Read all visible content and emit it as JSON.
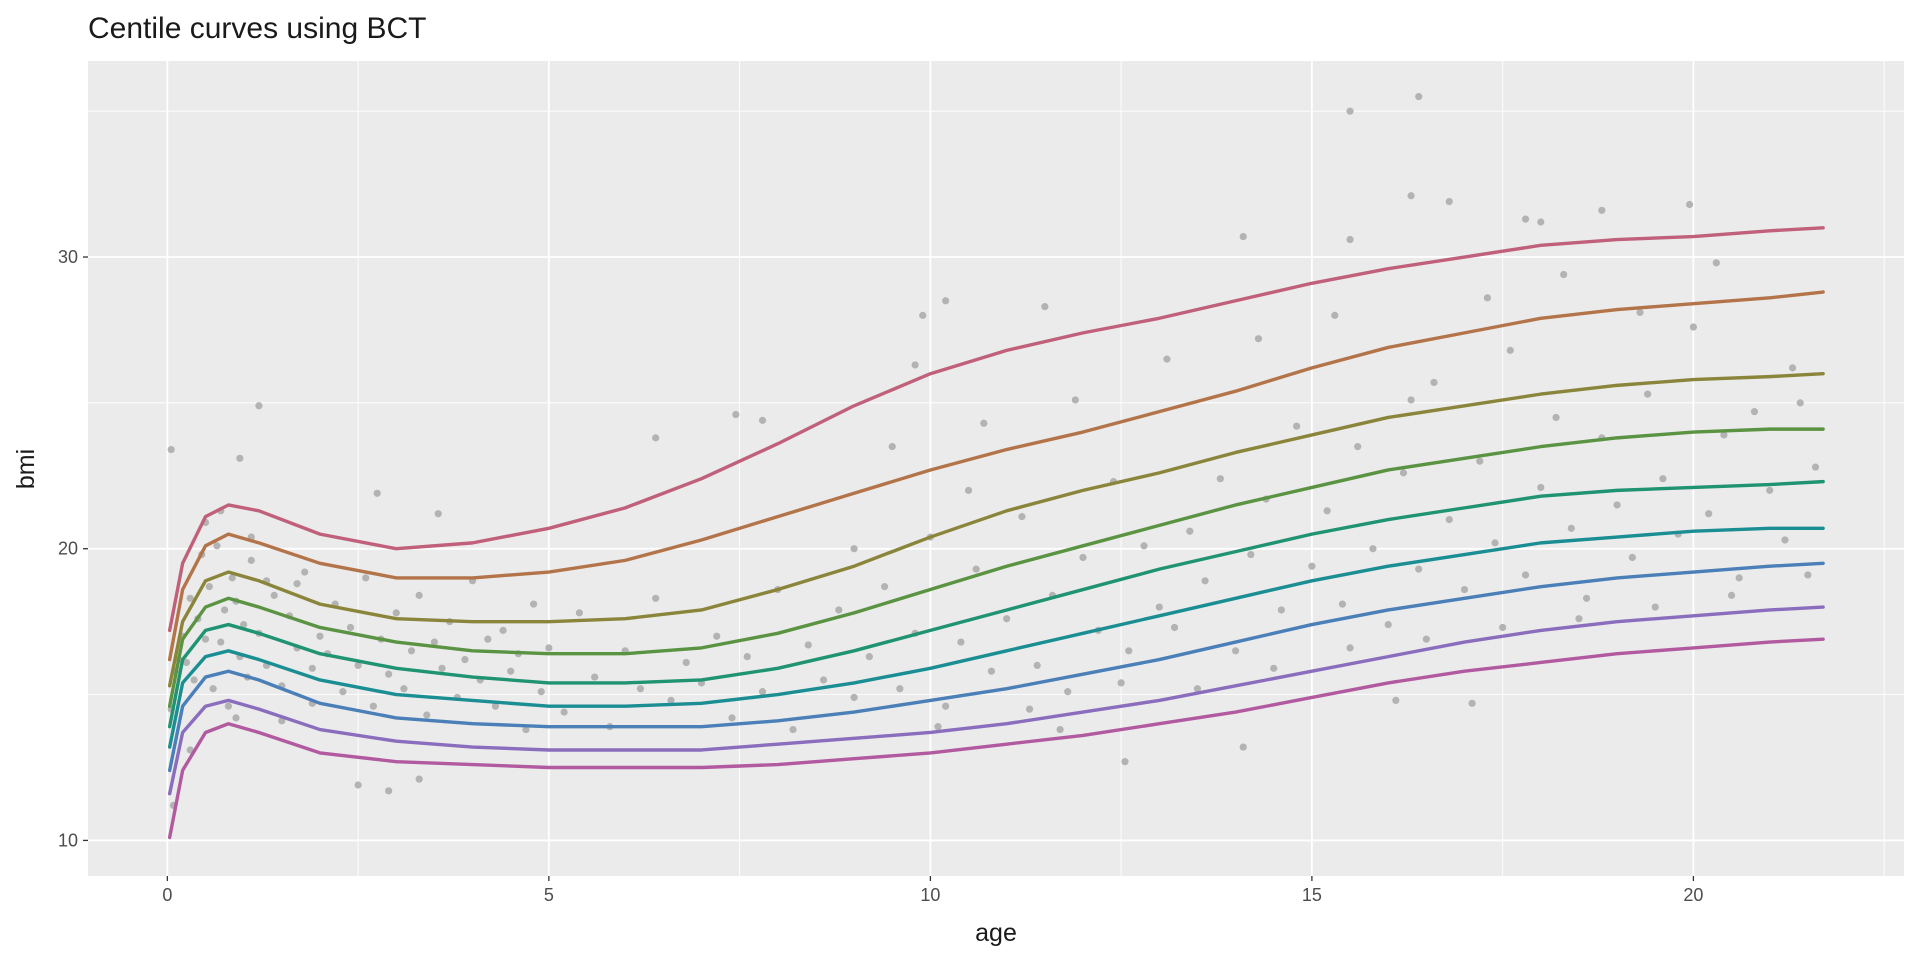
{
  "chart_data": {
    "type": "line",
    "title": "Centile curves using BCT",
    "x_label": "age",
    "y_label": "bmi",
    "xlim": [
      -1.04,
      22.76
    ],
    "ylim": [
      8.78,
      36.72
    ],
    "xticks": [
      0,
      5,
      10,
      15,
      20
    ],
    "yticks": [
      10,
      20,
      30
    ],
    "grid": true,
    "x": [
      0.03,
      0.2,
      0.5,
      0.8,
      1.2,
      2,
      3,
      4,
      5,
      6,
      7,
      8,
      9,
      10,
      11,
      12,
      13,
      14,
      15,
      16,
      17,
      18,
      19,
      20,
      21,
      21.7
    ],
    "series": [
      {
        "color": "#c0607a",
        "values": [
          17.2,
          19.5,
          21.1,
          21.5,
          21.3,
          20.5,
          20.0,
          20.2,
          20.7,
          21.4,
          22.4,
          23.6,
          24.9,
          26.0,
          26.8,
          27.4,
          27.9,
          28.5,
          29.1,
          29.6,
          30.0,
          30.4,
          30.6,
          30.7,
          30.9,
          31.0
        ]
      },
      {
        "color": "#b3744a",
        "values": [
          16.2,
          18.6,
          20.1,
          20.5,
          20.2,
          19.5,
          19.0,
          19.0,
          19.2,
          19.6,
          20.3,
          21.1,
          21.9,
          22.7,
          23.4,
          24.0,
          24.7,
          25.4,
          26.2,
          26.9,
          27.4,
          27.9,
          28.2,
          28.4,
          28.6,
          28.8
        ]
      },
      {
        "color": "#8a853a",
        "values": [
          15.3,
          17.5,
          18.9,
          19.2,
          18.9,
          18.1,
          17.6,
          17.5,
          17.5,
          17.6,
          17.9,
          18.6,
          19.4,
          20.4,
          21.3,
          22.0,
          22.6,
          23.3,
          23.9,
          24.5,
          24.9,
          25.3,
          25.6,
          25.8,
          25.9,
          26.0
        ]
      },
      {
        "color": "#5a9342",
        "values": [
          14.6,
          16.9,
          18.0,
          18.3,
          18.0,
          17.3,
          16.8,
          16.5,
          16.4,
          16.4,
          16.6,
          17.1,
          17.8,
          18.6,
          19.4,
          20.1,
          20.8,
          21.5,
          22.1,
          22.7,
          23.1,
          23.5,
          23.8,
          24.0,
          24.1,
          24.1
        ]
      },
      {
        "color": "#1f9372",
        "values": [
          13.9,
          16.2,
          17.2,
          17.4,
          17.1,
          16.4,
          15.9,
          15.6,
          15.4,
          15.4,
          15.5,
          15.9,
          16.5,
          17.2,
          17.9,
          18.6,
          19.3,
          19.9,
          20.5,
          21.0,
          21.4,
          21.8,
          22.0,
          22.1,
          22.2,
          22.3
        ]
      },
      {
        "color": "#1a8e92",
        "values": [
          13.2,
          15.4,
          16.3,
          16.5,
          16.2,
          15.5,
          15.0,
          14.8,
          14.6,
          14.6,
          14.7,
          15.0,
          15.4,
          15.9,
          16.5,
          17.1,
          17.7,
          18.3,
          18.9,
          19.4,
          19.8,
          20.2,
          20.4,
          20.6,
          20.7,
          20.7
        ]
      },
      {
        "color": "#4a7fb8",
        "values": [
          12.4,
          14.6,
          15.6,
          15.8,
          15.5,
          14.7,
          14.2,
          14.0,
          13.9,
          13.9,
          13.9,
          14.1,
          14.4,
          14.8,
          15.2,
          15.7,
          16.2,
          16.8,
          17.4,
          17.9,
          18.3,
          18.7,
          19.0,
          19.2,
          19.4,
          19.5
        ]
      },
      {
        "color": "#8a6dbd",
        "values": [
          11.6,
          13.7,
          14.6,
          14.8,
          14.5,
          13.8,
          13.4,
          13.2,
          13.1,
          13.1,
          13.1,
          13.3,
          13.5,
          13.7,
          14.0,
          14.4,
          14.8,
          15.3,
          15.8,
          16.3,
          16.8,
          17.2,
          17.5,
          17.7,
          17.9,
          18.0
        ]
      },
      {
        "color": "#b25a9f",
        "values": [
          10.1,
          12.4,
          13.7,
          14.0,
          13.7,
          13.0,
          12.7,
          12.6,
          12.5,
          12.5,
          12.5,
          12.6,
          12.8,
          13.0,
          13.3,
          13.6,
          14.0,
          14.4,
          14.9,
          15.4,
          15.8,
          16.1,
          16.4,
          16.6,
          16.8,
          16.9
        ]
      }
    ],
    "scatter": {
      "color": "#b3b3b3",
      "x": [
        0.05,
        0.1,
        0.15,
        0.2,
        0.25,
        0.3,
        0.35,
        0.4,
        0.45,
        0.5,
        0.55,
        0.6,
        0.65,
        0.7,
        0.75,
        0.8,
        0.85,
        0.9,
        0.95,
        1.0,
        1.05,
        1.1,
        1.2,
        1.3,
        1.4,
        1.5,
        1.6,
        1.7,
        1.8,
        1.9,
        0.3,
        0.5,
        0.7,
        0.9,
        1.1,
        1.3,
        1.5,
        1.7,
        1.9,
        2.0,
        2.1,
        2.2,
        2.3,
        2.4,
        2.5,
        2.6,
        2.7,
        2.8,
        2.9,
        3.0,
        3.1,
        3.2,
        3.3,
        3.4,
        3.5,
        3.6,
        3.7,
        3.8,
        3.9,
        4.0,
        4.1,
        4.2,
        4.3,
        4.4,
        4.5,
        4.6,
        4.7,
        4.8,
        4.9,
        5.0,
        5.2,
        5.4,
        5.6,
        5.8,
        6.0,
        6.2,
        6.4,
        6.6,
        6.8,
        7.0,
        7.2,
        7.4,
        7.6,
        7.8,
        8.0,
        8.2,
        8.4,
        8.6,
        8.8,
        9.0,
        9.2,
        9.4,
        9.6,
        9.8,
        10.0,
        10.2,
        10.4,
        10.6,
        10.8,
        11.0,
        11.2,
        11.4,
        11.6,
        11.8,
        12.0,
        12.2,
        12.4,
        12.6,
        12.8,
        13.0,
        9.5,
        10.1,
        10.7,
        11.3,
        11.9,
        12.5,
        13.1,
        9.0,
        10.5,
        11.7,
        13.2,
        13.4,
        13.6,
        13.8,
        14.0,
        14.2,
        14.4,
        14.6,
        14.8,
        15.0,
        15.2,
        15.4,
        15.6,
        15.8,
        16.0,
        16.2,
        16.4,
        16.6,
        16.8,
        17.0,
        17.2,
        17.4,
        17.6,
        17.8,
        18.0,
        18.2,
        18.4,
        18.6,
        18.8,
        19.0,
        19.2,
        19.4,
        19.6,
        19.8,
        20.0,
        20.2,
        20.4,
        20.6,
        20.8,
        21.0,
        21.2,
        21.4,
        21.6,
        13.5,
        14.5,
        15.5,
        16.5,
        17.5,
        18.5,
        19.5,
        20.5,
        21.5,
        14.3,
        15.3,
        16.3,
        17.3,
        18.3,
        19.3,
        20.3,
        21.3,
        0.05,
        1.2,
        0.95,
        2.75,
        3.55,
        6.4,
        7.45,
        7.8,
        9.9,
        10.2,
        9.8,
        11.5,
        14.1,
        15.5,
        16.4,
        16.3,
        16.8,
        15.5,
        17.8,
        18.8,
        19.95,
        18.0,
        12.55,
        14.1,
        17.1,
        16.1,
        3.3,
        2.5,
        2.9,
        0.08
      ],
      "values": [
        14.5,
        15.8,
        16.2,
        17.0,
        16.1,
        18.3,
        15.5,
        17.6,
        19.8,
        16.9,
        18.7,
        15.2,
        20.1,
        16.8,
        17.9,
        14.6,
        19.0,
        18.2,
        16.3,
        17.4,
        15.6,
        19.6,
        17.1,
        16.0,
        18.4,
        15.3,
        17.7,
        16.6,
        19.2,
        15.9,
        13.1,
        20.9,
        21.3,
        14.2,
        20.4,
        18.9,
        14.1,
        18.8,
        14.7,
        17.0,
        16.4,
        18.1,
        15.1,
        17.3,
        16.0,
        19.0,
        14.6,
        16.9,
        15.7,
        17.8,
        15.2,
        16.5,
        18.4,
        14.3,
        16.8,
        15.9,
        17.5,
        14.9,
        16.2,
        18.9,
        15.5,
        16.9,
        14.6,
        17.2,
        15.8,
        16.4,
        13.8,
        18.1,
        15.1,
        16.6,
        14.4,
        17.8,
        15.6,
        13.9,
        16.5,
        15.2,
        18.3,
        14.8,
        16.1,
        15.4,
        17.0,
        14.2,
        16.3,
        15.1,
        18.6,
        13.8,
        16.7,
        15.5,
        17.9,
        14.9,
        16.3,
        18.7,
        15.2,
        17.1,
        20.4,
        14.6,
        16.8,
        19.3,
        15.8,
        17.6,
        21.1,
        16.0,
        18.4,
        15.1,
        19.7,
        17.2,
        22.3,
        16.5,
        20.1,
        18.0,
        23.5,
        13.9,
        24.3,
        14.5,
        25.1,
        15.4,
        26.5,
        20.0,
        22.0,
        13.8,
        17.3,
        20.6,
        18.9,
        22.4,
        16.5,
        19.8,
        21.7,
        17.9,
        24.2,
        19.4,
        21.3,
        18.1,
        23.5,
        20.0,
        17.4,
        22.6,
        19.3,
        25.7,
        21.0,
        18.6,
        23.0,
        20.2,
        26.8,
        19.1,
        22.1,
        24.5,
        20.7,
        18.3,
        23.8,
        21.5,
        19.7,
        25.3,
        22.4,
        20.5,
        27.6,
        21.2,
        23.9,
        19.0,
        24.7,
        22.0,
        20.3,
        25.0,
        22.8,
        15.2,
        15.9,
        16.6,
        16.9,
        17.3,
        17.6,
        18.0,
        18.4,
        19.1,
        27.2,
        28.0,
        25.1,
        28.6,
        29.4,
        28.1,
        29.8,
        26.2,
        23.4,
        24.9,
        23.1,
        21.9,
        21.2,
        23.8,
        24.6,
        24.4,
        28.0,
        28.5,
        26.3,
        28.3,
        30.7,
        35.0,
        35.5,
        32.1,
        31.9,
        30.6,
        31.3,
        31.6,
        31.8,
        31.2,
        12.7,
        13.2,
        14.7,
        14.8,
        12.1,
        11.9,
        11.7,
        11.2
      ]
    }
  }
}
